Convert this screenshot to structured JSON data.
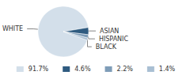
{
  "chart_data": {
    "type": "pie",
    "categories": [
      "WHITE",
      "ASIAN",
      "HISPANIC",
      "BLACK"
    ],
    "values": [
      91.7,
      4.6,
      2.2,
      1.4
    ],
    "value_labels": [
      "91.7%",
      "4.6%",
      "2.2%",
      "1.4%"
    ],
    "colors": [
      "#d3dfea",
      "#2f5b80",
      "#7f9db8",
      "#a9bfd3"
    ],
    "legend": "bottom"
  }
}
